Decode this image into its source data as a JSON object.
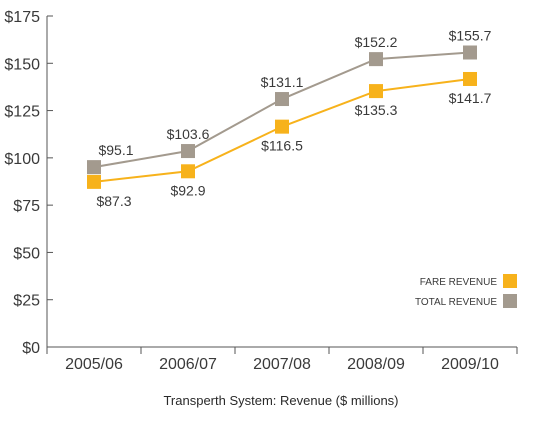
{
  "chart_data": {
    "type": "line",
    "title": "",
    "caption": "Transperth System: Revenue ($ millions)",
    "xlabel": "",
    "ylabel": "",
    "categories": [
      "2005/06",
      "2006/07",
      "2007/08",
      "2008/09",
      "2009/10"
    ],
    "ylim": [
      0,
      175
    ],
    "yticks": [
      0,
      25,
      50,
      75,
      100,
      125,
      150,
      175
    ],
    "ytick_labels": [
      "$0",
      "$25",
      "$50",
      "$75",
      "$100",
      "$125",
      "$150",
      "$175"
    ],
    "grid": false,
    "legend_position": "bottom-right",
    "series": [
      {
        "name": "FARE REVENUE",
        "color": "#f7b21b",
        "values": [
          87.3,
          92.9,
          116.5,
          135.3,
          141.7
        ],
        "labels": [
          "$87.3",
          "$92.9",
          "$116.5",
          "$135.3",
          "$141.7"
        ]
      },
      {
        "name": "TOTAL REVENUE",
        "color": "#a39a8e",
        "values": [
          95.1,
          103.6,
          131.1,
          152.2,
          155.7
        ],
        "labels": [
          "$95.1",
          "$103.6",
          "$131.1",
          "$152.2",
          "$155.7"
        ]
      }
    ]
  }
}
